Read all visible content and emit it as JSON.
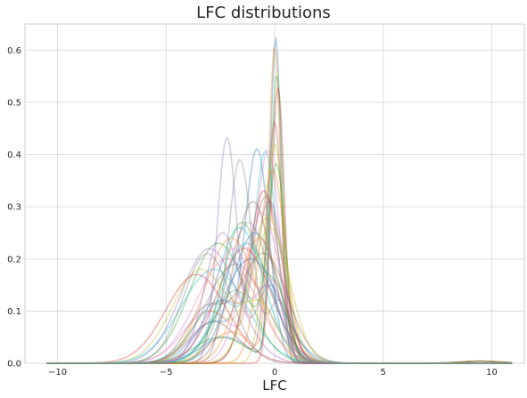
{
  "chart_data": {
    "type": "line",
    "title": "LFC distributions",
    "xlabel": "LFC",
    "ylabel": "",
    "xlim": [
      -11.5,
      11.5
    ],
    "ylim": [
      0,
      0.65
    ],
    "x_ticks": [
      -10,
      -5,
      0,
      5,
      10
    ],
    "y_ticks": [
      0.0,
      0.1,
      0.2,
      0.3,
      0.4,
      0.5,
      0.6
    ],
    "grid": true,
    "legend": "none",
    "note_series": "Many overlapping semi-transparent kernel density curves, each with one or two peaks roughly between LFC -3 and 1; maxima range from about 0.18 to 0.62 (highest near LFC 0).",
    "series": [
      {
        "peaks": [
          [
            0.05,
            0.25,
            0.62
          ],
          [
            -2.3,
            1.1,
            0.05
          ]
        ]
      },
      {
        "peaks": [
          [
            0.0,
            0.27,
            0.6
          ],
          [
            -2.0,
            1.0,
            0.06
          ]
        ]
      },
      {
        "peaks": [
          [
            0.1,
            0.28,
            0.55
          ],
          [
            -2.5,
            1.2,
            0.05
          ]
        ]
      },
      {
        "peaks": [
          [
            0.15,
            0.3,
            0.53
          ]
        ]
      },
      {
        "peaks": [
          [
            -2.2,
            0.45,
            0.43
          ],
          [
            -0.2,
            0.7,
            0.15
          ]
        ]
      },
      {
        "peaks": [
          [
            0.0,
            0.35,
            0.46
          ],
          [
            -2.8,
            1.1,
            0.08
          ]
        ]
      },
      {
        "peaks": [
          [
            -0.3,
            0.55,
            0.4
          ],
          [
            -3.0,
            1.2,
            0.1
          ]
        ]
      },
      {
        "peaks": [
          [
            -1.6,
            0.55,
            0.39
          ],
          [
            0.2,
            0.5,
            0.12
          ]
        ]
      },
      {
        "peaks": [
          [
            0.0,
            0.45,
            0.42
          ]
        ]
      },
      {
        "peaks": [
          [
            -0.4,
            0.5,
            0.38
          ],
          [
            -2.5,
            1.2,
            0.12
          ]
        ]
      },
      {
        "peaks": [
          [
            -0.8,
            0.55,
            0.4
          ],
          [
            -2.8,
            1.0,
            0.08
          ]
        ]
      },
      {
        "peaks": [
          [
            -0.1,
            0.6,
            0.37
          ]
        ]
      },
      {
        "peaks": [
          [
            0.1,
            0.4,
            0.36
          ],
          [
            -1.8,
            1.0,
            0.14
          ]
        ]
      },
      {
        "peaks": [
          [
            -0.5,
            0.7,
            0.33
          ]
        ]
      },
      {
        "peaks": [
          [
            -0.2,
            0.65,
            0.3
          ],
          [
            -2.4,
            1.0,
            0.12
          ]
        ]
      },
      {
        "peaks": [
          [
            -1.0,
            0.9,
            0.31
          ]
        ]
      },
      {
        "peaks": [
          [
            -0.6,
            0.85,
            0.29
          ]
        ]
      },
      {
        "peaks": [
          [
            -1.2,
            1.0,
            0.27
          ]
        ]
      },
      {
        "peaks": [
          [
            -0.3,
            0.8,
            0.28
          ],
          [
            -3.0,
            0.9,
            0.1
          ]
        ]
      },
      {
        "peaks": [
          [
            -1.6,
            1.1,
            0.26
          ]
        ]
      },
      {
        "peaks": [
          [
            -0.9,
            1.1,
            0.25
          ]
        ]
      },
      {
        "peaks": [
          [
            -2.0,
            1.2,
            0.24
          ]
        ]
      },
      {
        "peaks": [
          [
            -2.6,
            1.3,
            0.23
          ]
        ]
      },
      {
        "peaks": [
          [
            -1.4,
            1.25,
            0.22
          ]
        ]
      },
      {
        "peaks": [
          [
            -3.0,
            1.3,
            0.22
          ]
        ]
      },
      {
        "peaks": [
          [
            -0.5,
            1.1,
            0.21
          ],
          [
            -3.2,
            0.9,
            0.1
          ]
        ]
      },
      {
        "peaks": [
          [
            -2.2,
            1.4,
            0.2
          ]
        ]
      },
      {
        "peaks": [
          [
            -1.8,
            1.35,
            0.19
          ]
        ]
      },
      {
        "peaks": [
          [
            -3.4,
            1.3,
            0.18
          ],
          [
            -0.6,
            0.8,
            0.1
          ]
        ]
      },
      {
        "peaks": [
          [
            -2.8,
            1.5,
            0.18
          ]
        ]
      },
      {
        "peaks": [
          [
            -1.1,
            1.3,
            0.2
          ]
        ]
      },
      {
        "peaks": [
          [
            -0.7,
            0.95,
            0.24
          ]
        ]
      },
      {
        "peaks": [
          [
            -1.5,
            0.9,
            0.27
          ],
          [
            0.2,
            0.5,
            0.1
          ]
        ]
      },
      {
        "peaks": [
          [
            -3.6,
            1.4,
            0.17
          ]
        ]
      },
      {
        "peaks": [
          [
            -2.4,
            0.8,
            0.25
          ],
          [
            -0.3,
            0.6,
            0.14
          ]
        ]
      },
      {
        "peaks": [
          [
            -0.4,
            0.75,
            0.32
          ]
        ]
      },
      {
        "peaks": [
          [
            -1.9,
            1.0,
            0.22
          ],
          [
            0.0,
            0.45,
            0.12
          ]
        ]
      },
      {
        "peaks": [
          [
            -3.1,
            1.1,
            0.21
          ]
        ]
      },
      {
        "peaks": [
          [
            -0.2,
            0.9,
            0.26
          ]
        ]
      },
      {
        "peaks": [
          [
            -1.3,
            1.15,
            0.23
          ]
        ]
      }
    ],
    "palette": [
      "#1f77b4",
      "#ff7f0e",
      "#2ca02c",
      "#d62728",
      "#9467bd",
      "#8c564b",
      "#e377c2",
      "#7f7f7f",
      "#bcbd22",
      "#17becf"
    ]
  }
}
